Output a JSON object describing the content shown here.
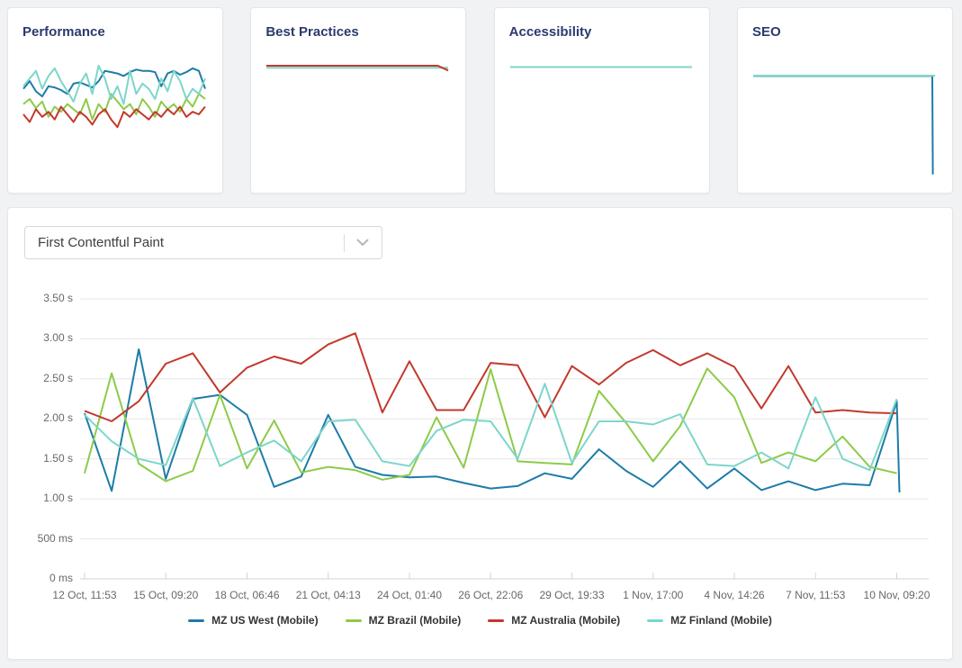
{
  "theme": {
    "heading_color": "#2c3a6e",
    "background": "#f1f2f4",
    "axis_label_color": "#65686c",
    "legend_text_color": "#333333"
  },
  "cards": [
    {
      "title": "Performance"
    },
    {
      "title": "Best Practices"
    },
    {
      "title": "Accessibility"
    },
    {
      "title": "SEO"
    }
  ],
  "metric_select": {
    "value": "First Contentful Paint"
  },
  "chart_data": [
    {
      "type": "line",
      "title": "First Contentful Paint",
      "xlim": [
        0,
        30.25
      ],
      "ylim": [
        0,
        3.5
      ],
      "grid": true,
      "grid_values": [
        0.5,
        1,
        1.5,
        2,
        2.5,
        3,
        3.5
      ],
      "baseline": 0,
      "grid_color": "#e7e7e7",
      "axis_color": "#ccd4de",
      "line_width": 2,
      "legend_position": "bottom",
      "y_tick_values": [
        3.5,
        3.0,
        2.5,
        2.0,
        1.5,
        1.0,
        0.5,
        0
      ],
      "y_tick_labels": [
        "3.50 s",
        "3.00 s",
        "2.50 s",
        "2.00 s",
        "1.50 s",
        "1.00 s",
        "500 ms",
        "0 ms"
      ],
      "x_tick_days": [
        0,
        3,
        6,
        9,
        12,
        15,
        18,
        21,
        24,
        27,
        30
      ],
      "x_tick_labels": [
        "12 Oct, 11:53",
        "15 Oct, 09:20",
        "18 Oct, 06:46",
        "21 Oct, 04:13",
        "24 Oct, 01:40",
        "26 Oct, 22:06",
        "29 Oct, 19:33",
        "1 Nov, 17:00",
        "4 Nov, 14:26",
        "7 Nov, 11:53",
        "10 Nov, 09:20"
      ],
      "series": [
        {
          "name": "MZ US West (Mobile)",
          "color": "#1d7ca7",
          "points": [
            [
              0,
              2.07
            ],
            [
              1,
              1.1
            ],
            [
              2,
              2.87
            ],
            [
              3,
              1.25
            ],
            [
              4,
              2.25
            ],
            [
              5,
              2.3
            ],
            [
              6,
              2.05
            ],
            [
              7,
              1.15
            ],
            [
              8,
              1.28
            ],
            [
              9,
              2.05
            ],
            [
              10,
              1.4
            ],
            [
              11,
              1.3
            ],
            [
              12,
              1.27
            ],
            [
              13,
              1.28
            ],
            [
              14,
              1.2
            ],
            [
              15,
              1.13
            ],
            [
              16,
              1.16
            ],
            [
              17,
              1.32
            ],
            [
              18,
              1.25
            ],
            [
              19,
              1.62
            ],
            [
              20,
              1.35
            ],
            [
              21,
              1.15
            ],
            [
              22,
              1.47
            ],
            [
              23,
              1.13
            ],
            [
              24,
              1.38
            ],
            [
              25,
              1.11
            ],
            [
              26,
              1.22
            ],
            [
              27,
              1.11
            ],
            [
              28,
              1.19
            ],
            [
              29,
              1.17
            ],
            [
              30,
              2.22
            ],
            [
              30.1,
              1.08
            ]
          ]
        },
        {
          "name": "MZ Brazil (Mobile)",
          "color": "#8ccb4a",
          "points": [
            [
              0,
              1.32
            ],
            [
              1,
              2.57
            ],
            [
              2,
              1.44
            ],
            [
              3,
              1.22
            ],
            [
              4,
              1.35
            ],
            [
              5,
              2.3
            ],
            [
              6,
              1.38
            ],
            [
              7,
              1.98
            ],
            [
              8,
              1.33
            ],
            [
              9,
              1.4
            ],
            [
              10,
              1.36
            ],
            [
              11,
              1.24
            ],
            [
              12,
              1.3
            ],
            [
              13,
              2.02
            ],
            [
              14,
              1.39
            ],
            [
              15,
              2.62
            ],
            [
              16,
              1.47
            ],
            [
              17,
              1.45
            ],
            [
              18,
              1.43
            ],
            [
              19,
              2.35
            ],
            [
              20,
              1.95
            ],
            [
              21,
              1.47
            ],
            [
              22,
              1.91
            ],
            [
              23,
              2.63
            ],
            [
              24,
              2.27
            ],
            [
              25,
              1.45
            ],
            [
              26,
              1.58
            ],
            [
              27,
              1.47
            ],
            [
              28,
              1.78
            ],
            [
              29,
              1.4
            ],
            [
              30,
              1.32
            ]
          ]
        },
        {
          "name": "MZ Australia (Mobile)",
          "color": "#c2392b",
          "points": [
            [
              0,
              2.1
            ],
            [
              1,
              1.97
            ],
            [
              2,
              2.22
            ],
            [
              3,
              2.69
            ],
            [
              4,
              2.82
            ],
            [
              5,
              2.33
            ],
            [
              6,
              2.64
            ],
            [
              7,
              2.78
            ],
            [
              8,
              2.69
            ],
            [
              9,
              2.93
            ],
            [
              10,
              3.07
            ],
            [
              11,
              2.08
            ],
            [
              12,
              2.72
            ],
            [
              13,
              2.11
            ],
            [
              14,
              2.11
            ],
            [
              15,
              2.7
            ],
            [
              16,
              2.67
            ],
            [
              17,
              2.02
            ],
            [
              18,
              2.66
            ],
            [
              19,
              2.43
            ],
            [
              20,
              2.7
            ],
            [
              21,
              2.86
            ],
            [
              22,
              2.67
            ],
            [
              23,
              2.82
            ],
            [
              24,
              2.65
            ],
            [
              25,
              2.13
            ],
            [
              26,
              2.66
            ],
            [
              27,
              2.08
            ],
            [
              28,
              2.11
            ],
            [
              29,
              2.08
            ],
            [
              30,
              2.07
            ]
          ]
        },
        {
          "name": "MZ Finland (Mobile)",
          "color": "#7cd6ca",
          "points": [
            [
              0,
              2.05
            ],
            [
              1,
              1.72
            ],
            [
              2,
              1.5
            ],
            [
              3,
              1.42
            ],
            [
              4,
              2.26
            ],
            [
              5,
              1.41
            ],
            [
              6,
              1.58
            ],
            [
              7,
              1.73
            ],
            [
              8,
              1.47
            ],
            [
              9,
              1.97
            ],
            [
              10,
              1.99
            ],
            [
              11,
              1.47
            ],
            [
              12,
              1.41
            ],
            [
              13,
              1.85
            ],
            [
              14,
              1.99
            ],
            [
              15,
              1.97
            ],
            [
              16,
              1.5
            ],
            [
              17,
              2.44
            ],
            [
              18,
              1.45
            ],
            [
              19,
              1.97
            ],
            [
              20,
              1.97
            ],
            [
              21,
              1.93
            ],
            [
              22,
              2.06
            ],
            [
              23,
              1.43
            ],
            [
              24,
              1.41
            ],
            [
              25,
              1.58
            ],
            [
              26,
              1.38
            ],
            [
              27,
              2.27
            ],
            [
              28,
              1.5
            ],
            [
              29,
              1.36
            ],
            [
              30,
              2.25
            ]
          ]
        }
      ]
    },
    {
      "type": "line",
      "title": "Performance",
      "xlim": [
        0,
        29
      ],
      "ylim": [
        0,
        100
      ],
      "grid": false,
      "line_width": 2,
      "series": [
        {
          "name": "MZ US West (Mobile)",
          "color": "#1d7ca7",
          "values": [
            70,
            76,
            68,
            64,
            72,
            71,
            69,
            66,
            74,
            75,
            73,
            71,
            76,
            84,
            83,
            82,
            80,
            83,
            85,
            84,
            84,
            83,
            72,
            82,
            84,
            81,
            83,
            86,
            84,
            70
          ]
        },
        {
          "name": "MZ Brazil (Mobile)",
          "color": "#8ccb4a",
          "values": [
            58,
            62,
            55,
            60,
            48,
            56,
            52,
            58,
            54,
            50,
            62,
            46,
            58,
            52,
            66,
            60,
            54,
            58,
            50,
            62,
            56,
            48,
            60,
            54,
            58,
            52,
            62,
            56,
            66,
            62
          ]
        },
        {
          "name": "MZ Australia (Mobile)",
          "color": "#c2392b",
          "values": [
            50,
            44,
            54,
            48,
            52,
            46,
            56,
            50,
            44,
            52,
            48,
            42,
            50,
            54,
            46,
            40,
            52,
            48,
            54,
            50,
            46,
            52,
            48,
            54,
            50,
            56,
            48,
            52,
            50,
            56
          ]
        },
        {
          "name": "MZ Finland (Mobile)",
          "color": "#7cd6ca",
          "values": [
            72,
            78,
            84,
            70,
            80,
            86,
            76,
            68,
            60,
            74,
            82,
            66,
            88,
            78,
            62,
            72,
            58,
            84,
            66,
            74,
            70,
            62,
            78,
            68,
            84,
            76,
            62,
            70,
            66,
            78
          ]
        }
      ]
    },
    {
      "type": "line",
      "title": "Best Practices",
      "xlim": [
        0,
        30
      ],
      "ylim": [
        0,
        100
      ],
      "grid": false,
      "line_width": 2,
      "series": [
        {
          "name": "MZ Finland (Mobile)",
          "color": "#7cd6ca",
          "points": [
            [
              0,
              86.5
            ],
            [
              30,
              86.5
            ]
          ]
        },
        {
          "name": "MZ Australia (Mobile)",
          "color": "#c2392b",
          "points": [
            [
              0,
              88
            ],
            [
              28.3,
              88
            ],
            [
              30,
              84.3
            ]
          ]
        }
      ]
    },
    {
      "type": "line",
      "title": "Accessibility",
      "xlim": [
        0,
        30
      ],
      "ylim": [
        0,
        100
      ],
      "grid": false,
      "line_width": 2,
      "series": [
        {
          "name": "MZ Finland (Mobile)",
          "color": "#7cd6ca",
          "points": [
            [
              0,
              87
            ],
            [
              30,
              87
            ]
          ]
        }
      ]
    },
    {
      "type": "line",
      "title": "SEO",
      "xlim": [
        0,
        30
      ],
      "ylim": [
        0,
        100
      ],
      "grid": false,
      "line_width": 2,
      "series": [
        {
          "name": "MZ US West (Mobile)",
          "color": "#1d7ca7",
          "points": [
            [
              0,
              80
            ],
            [
              29.55,
              80
            ],
            [
              29.65,
              3
            ]
          ]
        },
        {
          "name": "MZ Finland (Mobile)",
          "color": "#7cd6ca",
          "points": [
            [
              0,
              80.3
            ],
            [
              30,
              80.3
            ]
          ]
        }
      ]
    }
  ]
}
